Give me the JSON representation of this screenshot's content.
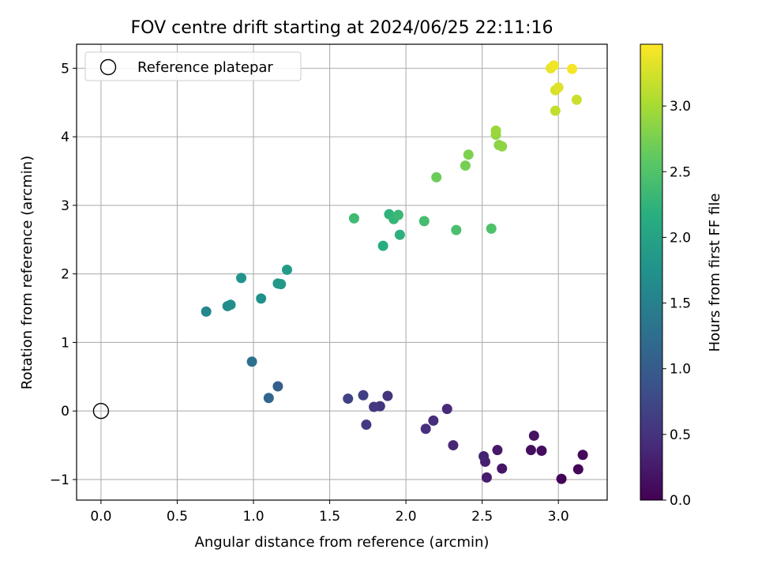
{
  "chart_data": {
    "type": "scatter",
    "title": "FOV centre drift starting at 2024/06/25 22:11:16",
    "xlabel": "Angular distance from reference (arcmin)",
    "ylabel": "Rotation from reference (arcmin)",
    "xlim": [
      -0.16,
      3.32
    ],
    "ylim": [
      -1.3,
      5.35
    ],
    "xticks": [
      0.0,
      0.5,
      1.0,
      1.5,
      2.0,
      2.5,
      3.0
    ],
    "xtick_labels": [
      "0.0",
      "0.5",
      "1.0",
      "1.5",
      "2.0",
      "2.5",
      "3.0"
    ],
    "yticks": [
      -1,
      0,
      1,
      2,
      3,
      4,
      5
    ],
    "ytick_labels": [
      "−1",
      "0",
      "1",
      "2",
      "3",
      "4",
      "5"
    ],
    "grid": true,
    "legend": {
      "placement": "top-left",
      "entries": [
        "Reference platepar"
      ]
    },
    "reference_point": {
      "name": "Reference platepar",
      "x": 0.0,
      "y": 0.0,
      "marker": "open-circle"
    },
    "colorbar": {
      "label": "Hours from first FF file",
      "colormap": "viridis",
      "range": [
        0.0,
        3.47
      ],
      "ticks": [
        0.0,
        0.5,
        1.0,
        1.5,
        2.0,
        2.5,
        3.0
      ],
      "tick_labels": [
        "0.0",
        "0.5",
        "1.0",
        "1.5",
        "2.0",
        "2.5",
        "3.0"
      ]
    },
    "points": [
      {
        "x": 3.02,
        "y": -0.99,
        "h": 0.02
      },
      {
        "x": 3.13,
        "y": -0.85,
        "h": 0.05
      },
      {
        "x": 3.16,
        "y": -0.64,
        "h": 0.08
      },
      {
        "x": 2.89,
        "y": -0.58,
        "h": 0.11
      },
      {
        "x": 2.82,
        "y": -0.57,
        "h": 0.14
      },
      {
        "x": 2.84,
        "y": -0.36,
        "h": 0.17
      },
      {
        "x": 2.63,
        "y": -0.84,
        "h": 0.21
      },
      {
        "x": 2.6,
        "y": -0.57,
        "h": 0.24
      },
      {
        "x": 2.53,
        "y": -0.97,
        "h": 0.27
      },
      {
        "x": 2.52,
        "y": -0.74,
        "h": 0.3
      },
      {
        "x": 2.51,
        "y": -0.66,
        "h": 0.33
      },
      {
        "x": 2.31,
        "y": -0.5,
        "h": 0.37
      },
      {
        "x": 2.27,
        "y": 0.03,
        "h": 0.4
      },
      {
        "x": 2.18,
        "y": -0.14,
        "h": 0.43
      },
      {
        "x": 2.13,
        "y": -0.26,
        "h": 0.46
      },
      {
        "x": 1.88,
        "y": 0.22,
        "h": 0.5
      },
      {
        "x": 1.83,
        "y": 0.07,
        "h": 0.53
      },
      {
        "x": 1.79,
        "y": 0.06,
        "h": 0.56
      },
      {
        "x": 1.74,
        "y": -0.2,
        "h": 0.6
      },
      {
        "x": 1.72,
        "y": 0.23,
        "h": 0.64
      },
      {
        "x": 1.62,
        "y": 0.18,
        "h": 0.68
      },
      {
        "x": 1.16,
        "y": 0.36,
        "h": 1.05
      },
      {
        "x": 1.1,
        "y": 0.19,
        "h": 1.12
      },
      {
        "x": 0.99,
        "y": 0.72,
        "h": 1.27
      },
      {
        "x": 0.69,
        "y": 1.45,
        "h": 1.6
      },
      {
        "x": 0.83,
        "y": 1.53,
        "h": 1.65
      },
      {
        "x": 0.85,
        "y": 1.55,
        "h": 1.69
      },
      {
        "x": 1.05,
        "y": 1.64,
        "h": 1.74
      },
      {
        "x": 0.92,
        "y": 1.94,
        "h": 1.78
      },
      {
        "x": 1.16,
        "y": 1.86,
        "h": 1.82
      },
      {
        "x": 1.18,
        "y": 1.85,
        "h": 1.84
      },
      {
        "x": 1.22,
        "y": 2.06,
        "h": 1.88
      },
      {
        "x": 1.85,
        "y": 2.41,
        "h": 2.15
      },
      {
        "x": 1.96,
        "y": 2.57,
        "h": 2.2
      },
      {
        "x": 1.89,
        "y": 2.87,
        "h": 2.24
      },
      {
        "x": 1.92,
        "y": 2.8,
        "h": 2.28
      },
      {
        "x": 1.95,
        "y": 2.86,
        "h": 2.32
      },
      {
        "x": 1.66,
        "y": 2.81,
        "h": 2.36
      },
      {
        "x": 2.12,
        "y": 2.77,
        "h": 2.4
      },
      {
        "x": 2.33,
        "y": 2.64,
        "h": 2.44
      },
      {
        "x": 2.56,
        "y": 2.66,
        "h": 2.48
      },
      {
        "x": 2.2,
        "y": 3.41,
        "h": 2.68
      },
      {
        "x": 2.39,
        "y": 3.58,
        "h": 2.73
      },
      {
        "x": 2.41,
        "y": 3.74,
        "h": 2.77
      },
      {
        "x": 2.61,
        "y": 3.88,
        "h": 2.84
      },
      {
        "x": 2.63,
        "y": 3.86,
        "h": 2.87
      },
      {
        "x": 2.59,
        "y": 4.03,
        "h": 2.9
      },
      {
        "x": 2.59,
        "y": 4.09,
        "h": 2.93
      },
      {
        "x": 2.98,
        "y": 4.38,
        "h": 3.14
      },
      {
        "x": 3.12,
        "y": 4.54,
        "h": 3.2
      },
      {
        "x": 2.98,
        "y": 4.68,
        "h": 3.26
      },
      {
        "x": 3.0,
        "y": 4.72,
        "h": 3.3
      },
      {
        "x": 2.95,
        "y": 5.0,
        "h": 3.36
      },
      {
        "x": 2.97,
        "y": 5.04,
        "h": 3.4
      },
      {
        "x": 3.09,
        "y": 4.99,
        "h": 3.44
      }
    ]
  }
}
